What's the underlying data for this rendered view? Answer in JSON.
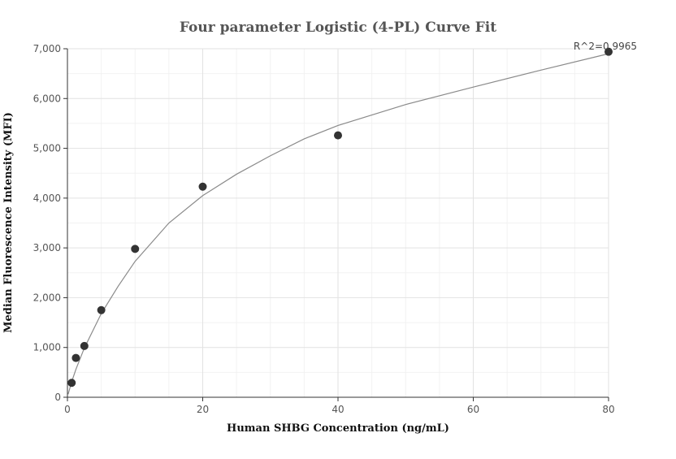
{
  "chart_data": {
    "type": "scatter",
    "title": "Four parameter Logistic (4-PL) Curve Fit",
    "xlabel": "Human SHBG Concentration (ng/mL)",
    "ylabel": "Median Fluorescence Intensity (MFI)",
    "xlim": [
      0,
      80
    ],
    "ylim": [
      0,
      7000
    ],
    "x_ticks": [
      0,
      20,
      40,
      60,
      80
    ],
    "x_tick_labels": [
      "0",
      "20",
      "40",
      "60",
      "80"
    ],
    "y_ticks": [
      0,
      1000,
      2000,
      3000,
      4000,
      5000,
      6000,
      7000
    ],
    "y_tick_labels": [
      "0",
      "1,000",
      "2,000",
      "3,000",
      "4,000",
      "5,000",
      "6,000",
      "7,000"
    ],
    "grid": true,
    "annotation": "R^2=0.9965",
    "points": [
      {
        "x": 0.625,
        "y": 290
      },
      {
        "x": 1.25,
        "y": 790
      },
      {
        "x": 2.5,
        "y": 1030
      },
      {
        "x": 5,
        "y": 1750
      },
      {
        "x": 10,
        "y": 2980
      },
      {
        "x": 20,
        "y": 4230
      },
      {
        "x": 40,
        "y": 5260
      },
      {
        "x": 80,
        "y": 6940
      }
    ],
    "fit_curve": [
      {
        "x": 0.1,
        "y": 60
      },
      {
        "x": 0.625,
        "y": 310
      },
      {
        "x": 1.25,
        "y": 560
      },
      {
        "x": 2.5,
        "y": 990
      },
      {
        "x": 5,
        "y": 1680
      },
      {
        "x": 7.5,
        "y": 2230
      },
      {
        "x": 10,
        "y": 2730
      },
      {
        "x": 15,
        "y": 3500
      },
      {
        "x": 20,
        "y": 4050
      },
      {
        "x": 25,
        "y": 4480
      },
      {
        "x": 30,
        "y": 4850
      },
      {
        "x": 35,
        "y": 5190
      },
      {
        "x": 40,
        "y": 5460
      },
      {
        "x": 50,
        "y": 5880
      },
      {
        "x": 60,
        "y": 6230
      },
      {
        "x": 70,
        "y": 6570
      },
      {
        "x": 80,
        "y": 6900
      }
    ]
  }
}
